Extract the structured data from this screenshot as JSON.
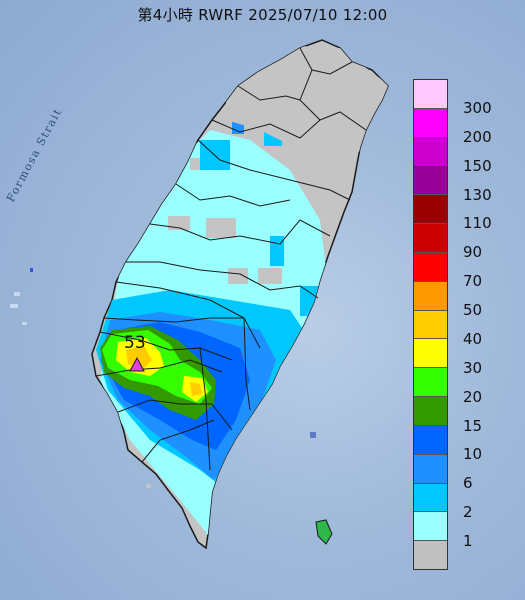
{
  "title": "第4小時  RWRF 2025/07/10 12:00",
  "sea_label": "Formosa Strait",
  "peak": {
    "value": "53",
    "marker_color": "#e040e0"
  },
  "legend": {
    "items": [
      {
        "label": "300",
        "color": "#ffc8ff"
      },
      {
        "label": "200",
        "color": "#ff00ff"
      },
      {
        "label": "150",
        "color": "#cc00cc"
      },
      {
        "label": "130",
        "color": "#990099"
      },
      {
        "label": "110",
        "color": "#990000"
      },
      {
        "label": "90",
        "color": "#cc0000"
      },
      {
        "label": "70",
        "color": "#ff0000"
      },
      {
        "label": "50",
        "color": "#ff9900"
      },
      {
        "label": "40",
        "color": "#ffcc00"
      },
      {
        "label": "30",
        "color": "#ffff00"
      },
      {
        "label": "20",
        "color": "#33ff00"
      },
      {
        "label": "15",
        "color": "#339900"
      },
      {
        "label": "10",
        "color": "#0066ff"
      },
      {
        "label": "6",
        "color": "#1e90ff"
      },
      {
        "label": "2",
        "color": "#00c8ff"
      },
      {
        "label": "1",
        "color": "#99ffff"
      },
      {
        "label": "",
        "color": "#c0c0c0"
      }
    ]
  },
  "colors": {
    "no_rain": "#c4c4c4",
    "sea": "#9fb9da",
    "border": "#1a1a1a"
  }
}
